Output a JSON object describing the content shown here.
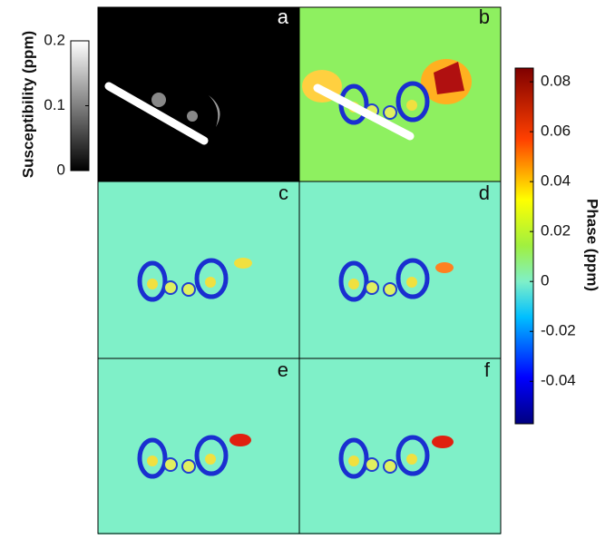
{
  "panels": [
    {
      "label": "a"
    },
    {
      "label": "b"
    },
    {
      "label": "c"
    },
    {
      "label": "d"
    },
    {
      "label": "e"
    },
    {
      "label": "f"
    }
  ],
  "colorbars": [
    {
      "label": "Susceptibility (ppm)",
      "lim": [
        0,
        0.2
      ],
      "ticks": [
        0,
        0.1,
        0.2
      ]
    },
    {
      "label": "Phase (ppm)",
      "lim": [
        -0.057,
        0.0855
      ],
      "ticks": [
        0.08,
        0.06,
        0.04,
        0.02,
        0,
        -0.02,
        -0.04
      ]
    }
  ]
}
